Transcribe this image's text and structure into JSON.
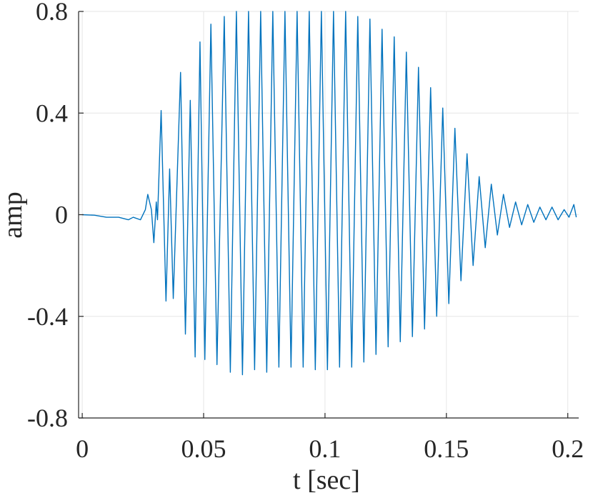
{
  "chart_data": {
    "type": "line",
    "title": "",
    "xlabel": "t [sec]",
    "ylabel": "amp",
    "xlim": [
      -0.0015,
      0.2045
    ],
    "ylim": [
      -0.8,
      0.8
    ],
    "xticks": [
      0,
      0.05,
      0.1,
      0.15,
      0.2
    ],
    "xtick_labels": [
      "0",
      "0.05",
      "0.1",
      "0.15",
      "0.2"
    ],
    "yticks": [
      -0.8,
      -0.4,
      0,
      0.4,
      0.8
    ],
    "ytick_labels": [
      "-0.8",
      "-0.4",
      "0",
      "0.4",
      "0.8"
    ],
    "grid": true,
    "series_color": "#0072BD",
    "grid_color": "#e6e6e6",
    "axis_color": "#262626",
    "series": [
      {
        "x": [
          0,
          0.005,
          0.01,
          0.015,
          0.019,
          0.021,
          0.024,
          0.026,
          0.027,
          0.0285,
          0.0295,
          0.0305,
          0.031,
          0.0325,
          0.0345,
          0.036,
          0.0375,
          0.0405,
          0.0425,
          0.0445,
          0.0465,
          0.0485,
          0.0505,
          0.053,
          0.0555,
          0.0585,
          0.061,
          0.0635,
          0.066,
          0.0685,
          0.071,
          0.0735,
          0.076,
          0.0785,
          0.081,
          0.0835,
          0.086,
          0.0885,
          0.091,
          0.0935,
          0.096,
          0.0985,
          0.101,
          0.1035,
          0.106,
          0.1085,
          0.111,
          0.1135,
          0.116,
          0.1185,
          0.121,
          0.1235,
          0.126,
          0.1285,
          0.131,
          0.1335,
          0.136,
          0.1385,
          0.141,
          0.1435,
          0.146,
          0.1485,
          0.151,
          0.1535,
          0.156,
          0.1585,
          0.161,
          0.1635,
          0.166,
          0.1685,
          0.171,
          0.1735,
          0.176,
          0.1785,
          0.181,
          0.1835,
          0.186,
          0.1885,
          0.191,
          0.1935,
          0.196,
          0.1985,
          0.2005,
          0.2025,
          0.2035
        ],
        "values": [
          0,
          -0.002,
          -0.01,
          -0.01,
          -0.02,
          -0.01,
          -0.02,
          0.02,
          0.08,
          0.02,
          -0.11,
          0.05,
          -0.02,
          0.41,
          -0.34,
          0.18,
          -0.33,
          0.56,
          -0.47,
          0.45,
          -0.56,
          0.68,
          -0.57,
          0.75,
          -0.59,
          0.78,
          -0.62,
          0.8,
          -0.63,
          0.8,
          -0.61,
          0.8,
          -0.62,
          0.8,
          -0.6,
          0.8,
          -0.6,
          0.8,
          -0.6,
          0.8,
          -0.61,
          0.8,
          -0.61,
          0.8,
          -0.6,
          0.8,
          -0.6,
          0.78,
          -0.58,
          0.77,
          -0.55,
          0.73,
          -0.52,
          0.7,
          -0.5,
          0.64,
          -0.48,
          0.58,
          -0.45,
          0.5,
          -0.4,
          0.42,
          -0.35,
          0.34,
          -0.26,
          0.24,
          -0.2,
          0.15,
          -0.13,
          0.12,
          -0.08,
          0.08,
          -0.05,
          0.05,
          -0.04,
          0.04,
          -0.03,
          0.03,
          -0.02,
          0.03,
          -0.02,
          0.02,
          -0.01,
          0.04,
          -0.01
        ]
      }
    ]
  }
}
